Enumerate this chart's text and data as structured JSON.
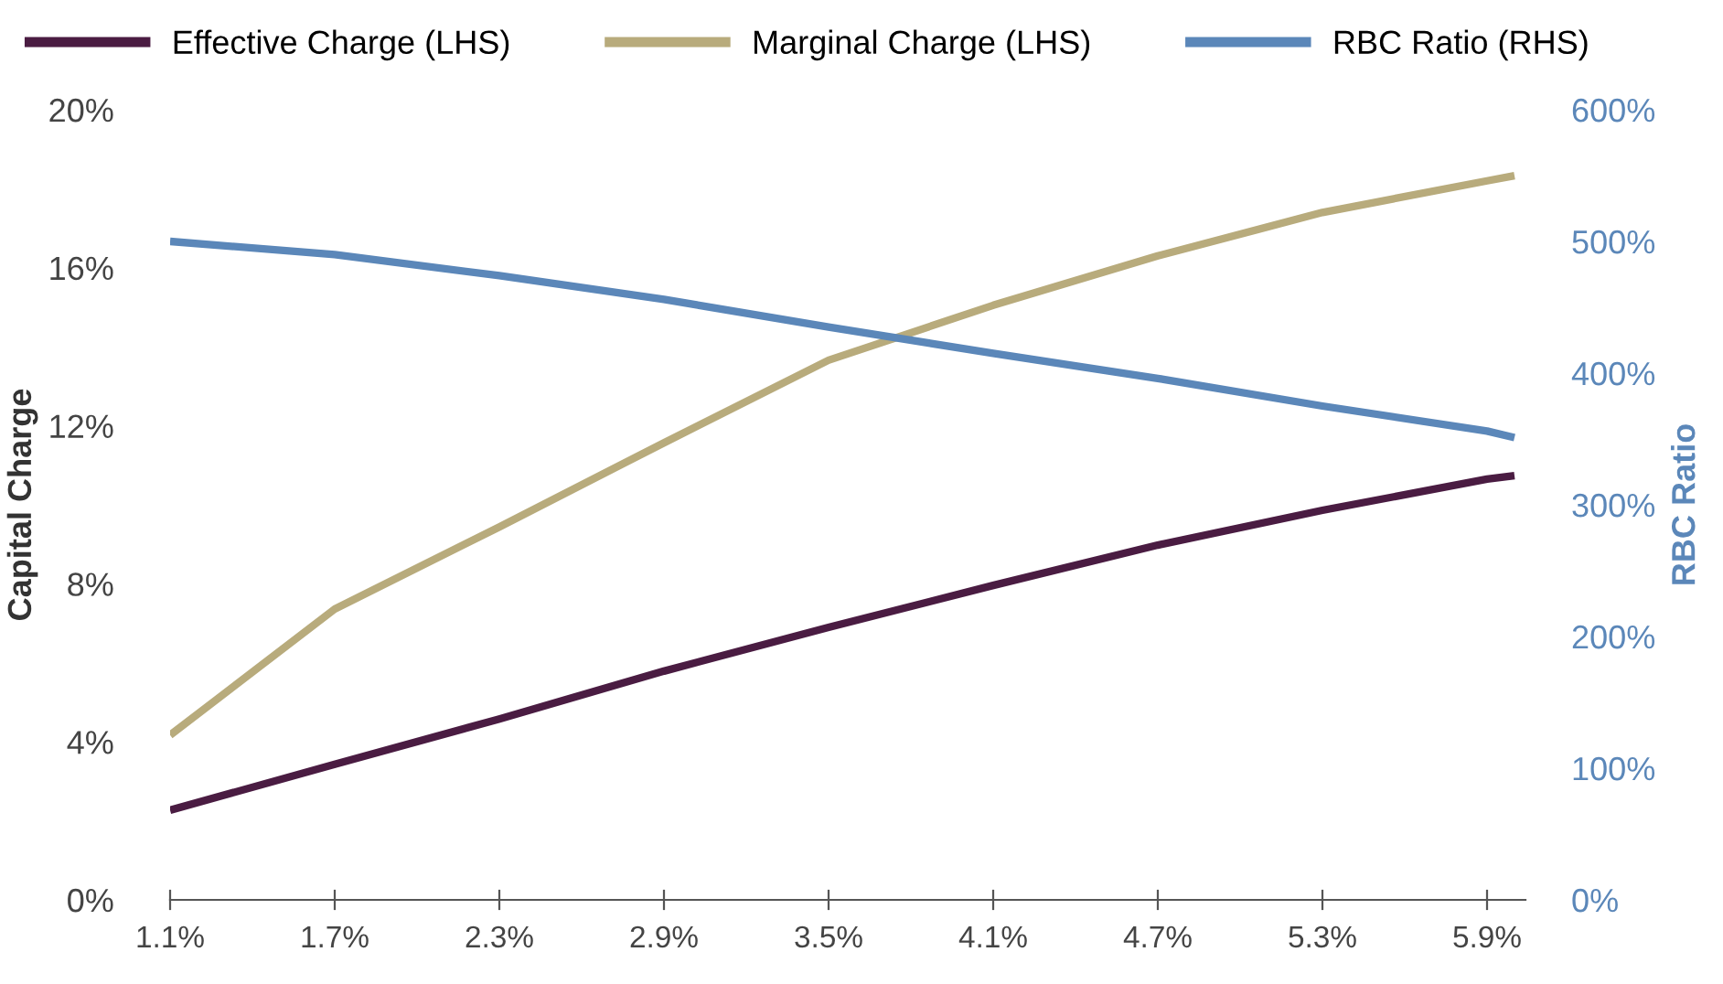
{
  "chart_data": {
    "type": "line",
    "ylabel": "Capital Charge",
    "y2label": "RBC Ratio",
    "x": [
      1.1,
      1.7,
      2.3,
      2.9,
      3.5,
      4.1,
      4.7,
      5.3,
      5.9,
      6.0
    ],
    "series": [
      {
        "name": "Effective Charge (LHS)",
        "color": "#4a1c42",
        "values": [
          2.27,
          3.43,
          4.58,
          5.79,
          6.9,
          7.96,
          8.98,
          9.86,
          10.65,
          10.74
        ]
      },
      {
        "name": "Marginal Charge (LHS)",
        "color": "#b8ab7c",
        "values": [
          4.17,
          7.36,
          9.44,
          11.57,
          13.66,
          15.05,
          16.3,
          17.4,
          18.2,
          18.33
        ]
      },
      {
        "name": "RBC Ratio (RHS)",
        "color": "#5b87b9",
        "axis": "y2",
        "values": [
          500,
          490,
          474,
          456,
          435,
          415,
          396,
          375,
          356,
          351
        ]
      }
    ],
    "xlim": [
      1.1,
      6.04
    ],
    "xticks": [
      {
        "value": 1.1,
        "label": "1.1%"
      },
      {
        "value": 1.7,
        "label": "1.7%"
      },
      {
        "value": 2.3,
        "label": "2.3%"
      },
      {
        "value": 2.9,
        "label": "2.9%"
      },
      {
        "value": 3.5,
        "label": "3.5%"
      },
      {
        "value": 4.1,
        "label": "4.1%"
      },
      {
        "value": 4.7,
        "label": "4.7%"
      },
      {
        "value": 5.3,
        "label": "5.3%"
      },
      {
        "value": 5.9,
        "label": "5.9%"
      }
    ],
    "ylim": [
      0,
      20
    ],
    "yticks": [
      {
        "value": 0,
        "label": "0%"
      },
      {
        "value": 4,
        "label": "4%"
      },
      {
        "value": 8,
        "label": "8%"
      },
      {
        "value": 12,
        "label": "12%"
      },
      {
        "value": 16,
        "label": "16%"
      },
      {
        "value": 20,
        "label": "20%"
      }
    ],
    "y2lim": [
      0,
      600
    ],
    "y2ticks": [
      {
        "value": 0,
        "label": "0%"
      },
      {
        "value": 100,
        "label": "100%"
      },
      {
        "value": 200,
        "label": "200%"
      },
      {
        "value": 300,
        "label": "300%"
      },
      {
        "value": 400,
        "label": "400%"
      },
      {
        "value": 500,
        "label": "500%"
      },
      {
        "value": 600,
        "label": "600%"
      }
    ],
    "legend": "top left",
    "grid": false,
    "marker": "none",
    "line_style": "solid"
  }
}
